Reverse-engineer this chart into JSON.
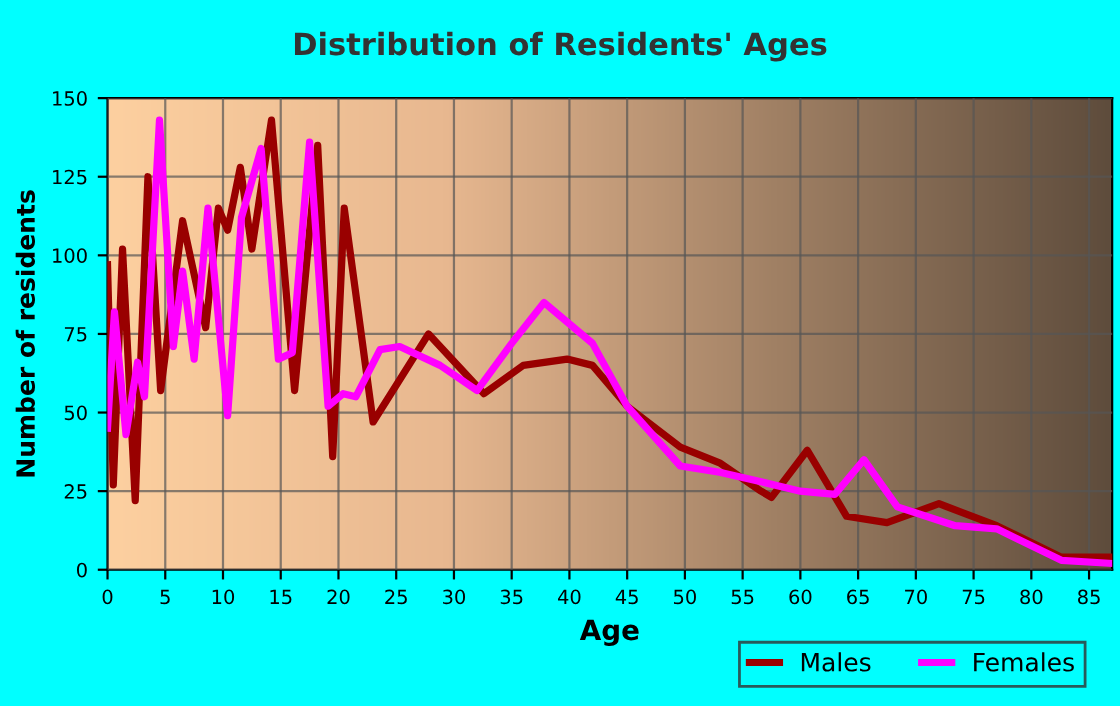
{
  "chart_data": {
    "type": "line",
    "title": "Distribution of Residents' Ages",
    "xlabel": "Age",
    "ylabel": "Number of residents",
    "xlim": [
      0,
      87
    ],
    "ylim": [
      0,
      150
    ],
    "xticks": [
      0,
      5,
      10,
      15,
      20,
      25,
      30,
      35,
      40,
      45,
      50,
      55,
      60,
      65,
      70,
      75,
      80,
      85
    ],
    "yticks": [
      0,
      25,
      50,
      75,
      100,
      125,
      150
    ],
    "grid": true,
    "legend": "bottom right",
    "line_style": "solid",
    "marker": "none",
    "series": [
      {
        "name": "Males",
        "color": "#990000",
        "x": [
          0,
          0.5,
          1.3,
          2.4,
          3.5,
          4.6,
          6.5,
          8.5,
          9.6,
          10.4,
          11.5,
          12.5,
          14.2,
          16.2,
          18.2,
          19.5,
          20.5,
          23,
          27.8,
          32.6,
          36,
          39.8,
          42,
          45,
          49.6,
          53,
          56.6,
          57.5,
          60.6,
          64,
          67.5,
          72,
          77,
          82.6,
          87
        ],
        "values": [
          97,
          27,
          102,
          22,
          125,
          57,
          111,
          77,
          115,
          108,
          128,
          102,
          143,
          57,
          135,
          36,
          115,
          47,
          75,
          56,
          65,
          67,
          65,
          52,
          39,
          34,
          25,
          23,
          38,
          17,
          15,
          21,
          14,
          4,
          4
        ]
      },
      {
        "name": "Females",
        "color": "#ff00ff",
        "x": [
          0,
          0.6,
          1.6,
          2.6,
          3.2,
          4.5,
          5.7,
          6.5,
          7.5,
          8.7,
          10.4,
          11.6,
          13.3,
          14.8,
          16,
          17.5,
          19.1,
          20.4,
          21.5,
          23.6,
          25.3,
          28.8,
          32,
          35,
          37.8,
          42,
          45,
          49.6,
          53,
          56.6,
          60,
          63,
          65.5,
          68.4,
          73.4,
          77,
          82.6,
          87
        ],
        "values": [
          45,
          82,
          43,
          66,
          55,
          143,
          71,
          95,
          67,
          115,
          49,
          112,
          134,
          67,
          69,
          136,
          52,
          56,
          55,
          70,
          71,
          65,
          57,
          72,
          85,
          72,
          52,
          33,
          31,
          28,
          25,
          24,
          35,
          20,
          14,
          13,
          3,
          2
        ]
      }
    ]
  }
}
